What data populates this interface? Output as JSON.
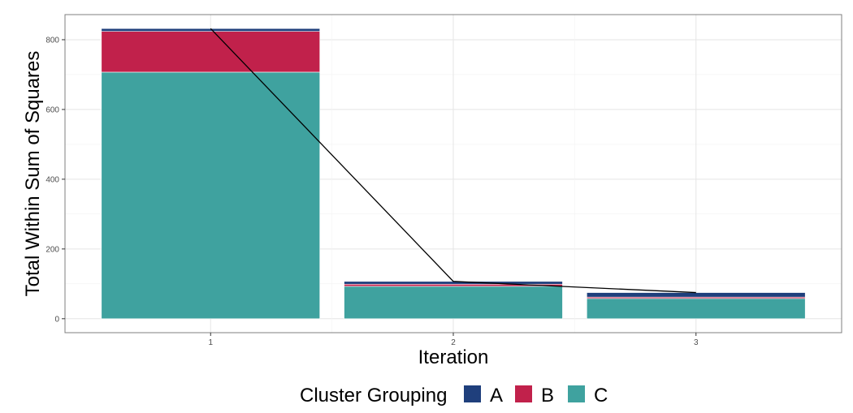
{
  "chart_data": {
    "type": "bar",
    "stacked": true,
    "categories": [
      "1",
      "2",
      "3"
    ],
    "series": [
      {
        "name": "A",
        "color": "#1F3F7C",
        "values": [
          8,
          8,
          13
        ]
      },
      {
        "name": "B",
        "color": "#C1214B",
        "values": [
          117,
          6,
          4
        ]
      },
      {
        "name": "C",
        "color": "#3FA29F",
        "values": [
          707,
          93,
          58
        ]
      }
    ],
    "line": {
      "values": [
        832,
        107,
        75
      ],
      "color": "#000000"
    },
    "xlabel": "Iteration",
    "ylabel": "Total Within Sum of Squares",
    "ylim": [
      -40,
      872
    ],
    "yticks": [
      0,
      200,
      400,
      600,
      800
    ],
    "grid": true,
    "legend": {
      "title": "Cluster Grouping",
      "position": "bottom"
    }
  }
}
